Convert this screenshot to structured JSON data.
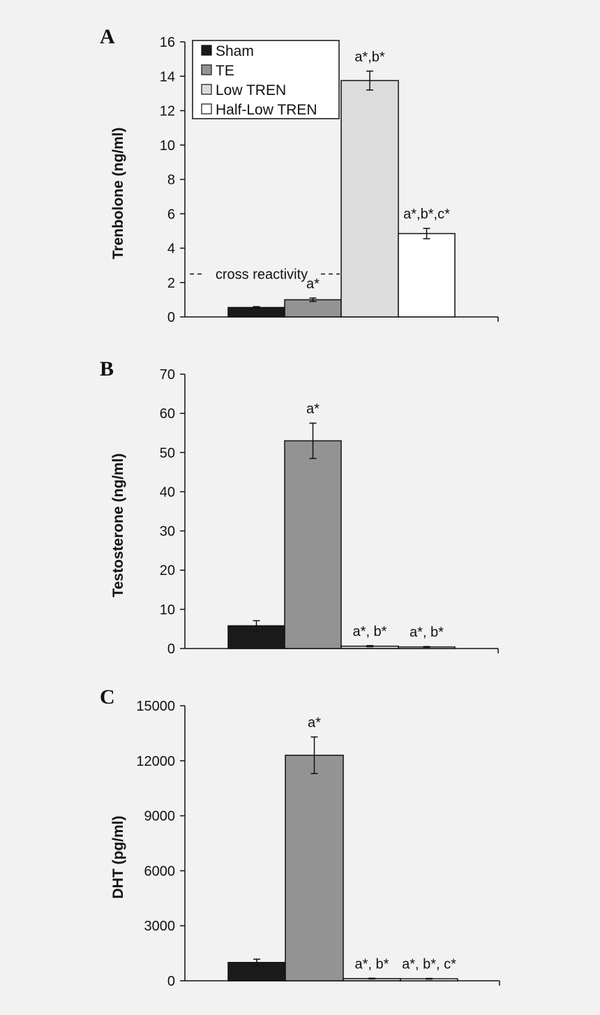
{
  "legend": [
    {
      "label": "Sham",
      "color": "#1a1a1a"
    },
    {
      "label": "TE",
      "color": "#939393"
    },
    {
      "label": "Low TREN",
      "color": "#dcdcdc"
    },
    {
      "label": "Half-Low TREN",
      "color": "#ffffff"
    }
  ],
  "chart_data": [
    {
      "type": "bar",
      "panel": "A",
      "ylabel": "Trenbolone (ng/ml)",
      "ylim": [
        0,
        16
      ],
      "yticks": [
        0,
        2,
        4,
        6,
        8,
        10,
        12,
        14,
        16
      ],
      "categories": [
        "Sham",
        "TE",
        "Low TREN",
        "Half-Low TREN"
      ],
      "values": [
        0.55,
        1.0,
        13.75,
        4.85
      ],
      "errors": [
        0.05,
        0.1,
        0.55,
        0.3
      ],
      "annotations": [
        "",
        "a*",
        "a*,b*",
        "a*,b*,c*"
      ],
      "reference_line": {
        "y": 2.5,
        "label": "cross reactivity"
      },
      "legend_position": "top-left"
    },
    {
      "type": "bar",
      "panel": "B",
      "ylabel": "Testosterone (ng/ml)",
      "ylim": [
        0,
        70
      ],
      "yticks": [
        0,
        10,
        20,
        30,
        40,
        50,
        60,
        70
      ],
      "categories": [
        "Sham",
        "TE",
        "Low TREN",
        "Half-Low TREN"
      ],
      "values": [
        5.8,
        53.0,
        0.6,
        0.4
      ],
      "errors": [
        1.3,
        4.5,
        0.15,
        0.1
      ],
      "annotations": [
        "",
        "a*",
        "a*, b*",
        "a*, b*"
      ]
    },
    {
      "type": "bar",
      "panel": "C",
      "ylabel": "DHT (pg/ml)",
      "ylim": [
        0,
        15000
      ],
      "yticks": [
        0,
        3000,
        6000,
        9000,
        12000,
        15000
      ],
      "categories": [
        "Sham",
        "TE",
        "Low TREN",
        "Half-Low TREN"
      ],
      "values": [
        1000,
        12300,
        120,
        110
      ],
      "errors": [
        180,
        1000,
        20,
        20
      ],
      "annotations": [
        "",
        "a*",
        "a*, b*",
        "a*, b*, c*"
      ]
    }
  ]
}
